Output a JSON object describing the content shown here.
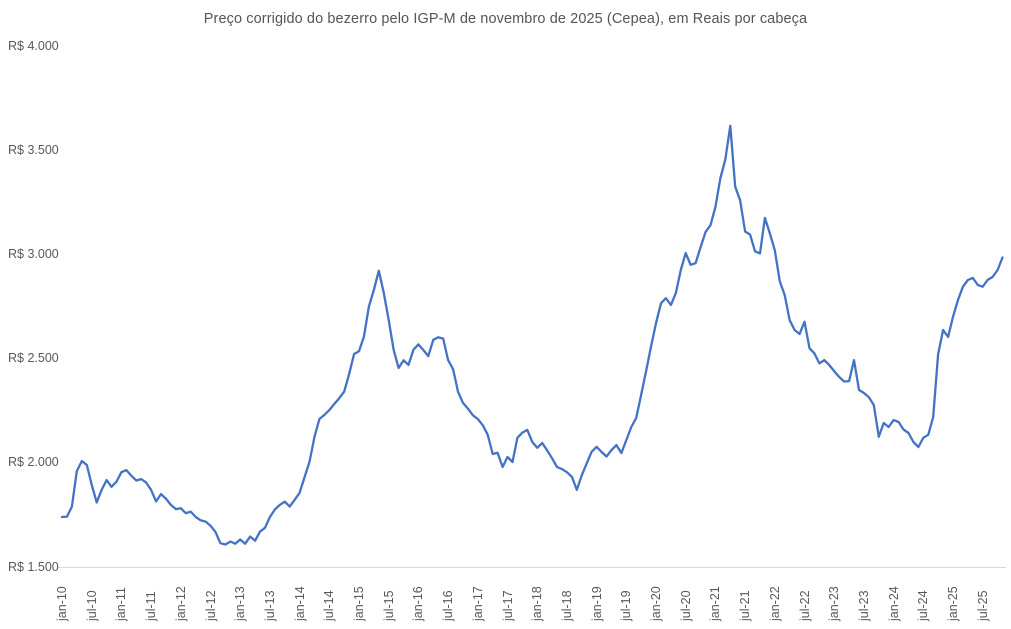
{
  "chart_data": {
    "type": "line",
    "title": "Preço corrigido do bezerro pelo IGP-M de novembro de 2025 (Cepea), em Reais por cabeça",
    "xlabel": "",
    "ylabel": "",
    "ylim": [
      1500,
      4000
    ],
    "grid": false,
    "legend": false,
    "line_color": "#4472C4",
    "axis_line_color": "#D9D9D9",
    "label_color": "#595959",
    "y_ticks": [
      {
        "label": "R$ 1.500",
        "value": 1500
      },
      {
        "label": "R$ 2.000",
        "value": 2000
      },
      {
        "label": "R$ 2.500",
        "value": 2500
      },
      {
        "label": "R$ 3.000",
        "value": 3000
      },
      {
        "label": "R$ 3.500",
        "value": 3500
      },
      {
        "label": "R$ 4.000",
        "value": 4000
      }
    ],
    "x_tick_labels": [
      "jan-10",
      "jul-10",
      "jan-11",
      "jul-11",
      "jan-12",
      "jul-12",
      "jan-13",
      "jul-13",
      "jan-14",
      "jul-14",
      "jan-15",
      "jul-15",
      "jan-16",
      "jul-16",
      "jan-17",
      "jul-17",
      "jan-18",
      "jul-18",
      "jan-19",
      "jul-19",
      "jan-20",
      "jul-20",
      "jan-21",
      "jul-21",
      "jan-22",
      "jul-22",
      "jan-23",
      "jul-23",
      "jan-24",
      "jul-24",
      "jan-25",
      "jul-25"
    ],
    "x_start": "jan-10",
    "x_end": "nov-25",
    "frequency": "monthly",
    "x_tick_interval_months": 6,
    "series": [
      {
        "name": "Preço corrigido do bezerro (R$/cabeça)",
        "values": [
          1740,
          1742,
          1790,
          1960,
          2008,
          1990,
          1895,
          1810,
          1870,
          1917,
          1885,
          1910,
          1955,
          1965,
          1938,
          1915,
          1922,
          1905,
          1870,
          1815,
          1850,
          1828,
          1798,
          1778,
          1782,
          1758,
          1766,
          1740,
          1724,
          1718,
          1698,
          1668,
          1614,
          1608,
          1622,
          1612,
          1632,
          1612,
          1646,
          1626,
          1670,
          1688,
          1740,
          1776,
          1798,
          1814,
          1790,
          1822,
          1856,
          1932,
          2005,
          2125,
          2210,
          2230,
          2253,
          2282,
          2310,
          2342,
          2425,
          2522,
          2535,
          2605,
          2750,
          2830,
          2922,
          2815,
          2685,
          2541,
          2455,
          2492,
          2470,
          2542,
          2568,
          2541,
          2512,
          2590,
          2602,
          2596,
          2493,
          2449,
          2341,
          2288,
          2260,
          2228,
          2210,
          2180,
          2135,
          2042,
          2048,
          1980,
          2028,
          2004,
          2120,
          2145,
          2158,
          2100,
          2072,
          2095,
          2060,
          2022,
          1980,
          1970,
          1955,
          1933,
          1870,
          1940,
          1997,
          2053,
          2077,
          2052,
          2030,
          2061,
          2085,
          2047,
          2109,
          2172,
          2215,
          2325,
          2440,
          2560,
          2670,
          2766,
          2790,
          2757,
          2814,
          2925,
          3006,
          2950,
          2958,
          3035,
          3107,
          3140,
          3227,
          3366,
          3455,
          3617,
          3325,
          3260,
          3110,
          3095,
          3015,
          3005,
          3175,
          3100,
          3020,
          2870,
          2805,
          2685,
          2637,
          2618,
          2677,
          2550,
          2525,
          2477,
          2493,
          2469,
          2440,
          2412,
          2390,
          2392,
          2493,
          2350,
          2335,
          2315,
          2277,
          2125,
          2191,
          2172,
          2205,
          2196,
          2160,
          2143,
          2100,
          2076,
          2120,
          2135,
          2220,
          2520,
          2637,
          2604,
          2700,
          2781,
          2845,
          2877,
          2887,
          2853,
          2845,
          2877,
          2892,
          2925,
          2985
        ]
      }
    ]
  }
}
